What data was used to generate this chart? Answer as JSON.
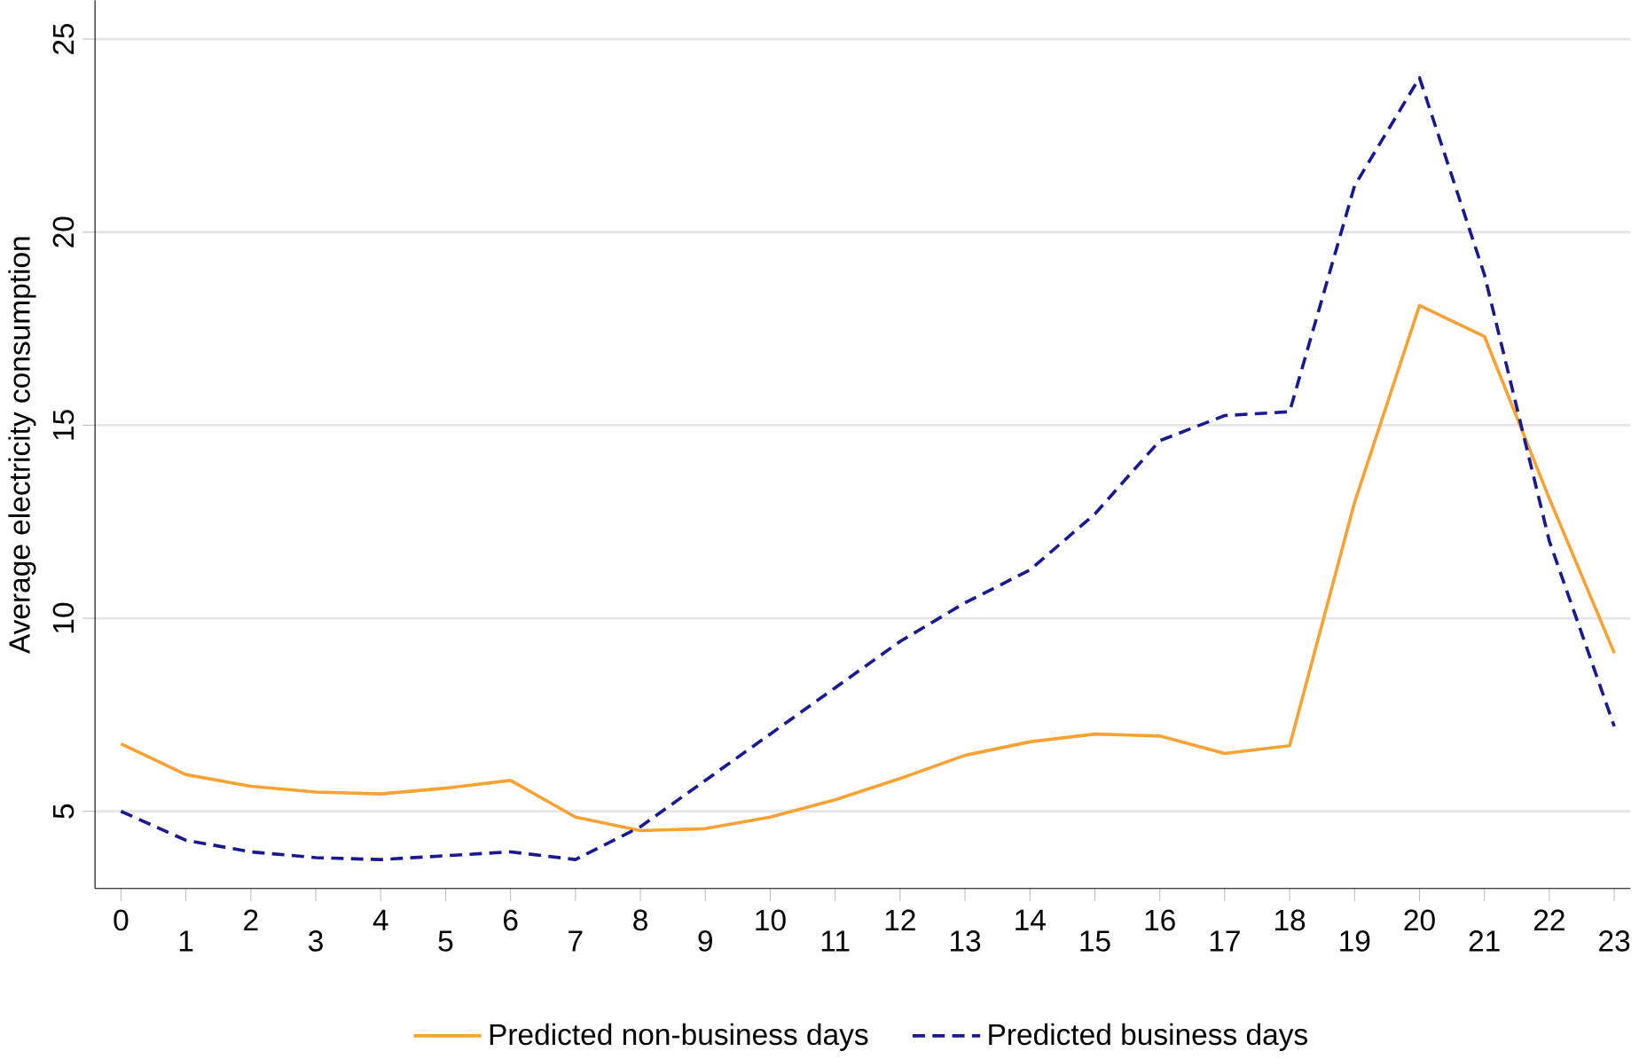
{
  "chart_data": {
    "type": "line",
    "ylabel": "Average electricity consumption",
    "categories": [
      "0",
      "1",
      "2",
      "3",
      "4",
      "5",
      "6",
      "7",
      "8",
      "9",
      "10",
      "11",
      "12",
      "13",
      "14",
      "15",
      "16",
      "17",
      "18",
      "19",
      "20",
      "21",
      "22",
      "23"
    ],
    "series": [
      {
        "name": "Predicted non-business days",
        "color": "#f7a234",
        "line_style": "solid",
        "values": [
          6.75,
          5.95,
          5.65,
          5.5,
          5.45,
          5.6,
          5.8,
          4.85,
          4.5,
          4.55,
          4.85,
          5.3,
          5.85,
          6.45,
          6.8,
          7.0,
          6.95,
          6.5,
          6.7,
          13.0,
          18.1,
          17.3,
          13.1,
          9.1
        ]
      },
      {
        "name": "Predicted business days",
        "color": "#1a1a8c",
        "line_style": "dashed",
        "values": [
          5.0,
          4.25,
          3.95,
          3.8,
          3.75,
          3.85,
          3.95,
          3.75,
          4.6,
          5.8,
          7.0,
          8.2,
          9.4,
          10.4,
          11.25,
          12.7,
          14.6,
          15.25,
          15.35,
          21.2,
          24.0,
          18.9,
          12.0,
          7.2
        ]
      }
    ],
    "ylim": [
      3,
      26
    ],
    "yticks": [
      5,
      10,
      15,
      20,
      25
    ],
    "grid": "y",
    "legend": "bottom",
    "marker": "none"
  }
}
